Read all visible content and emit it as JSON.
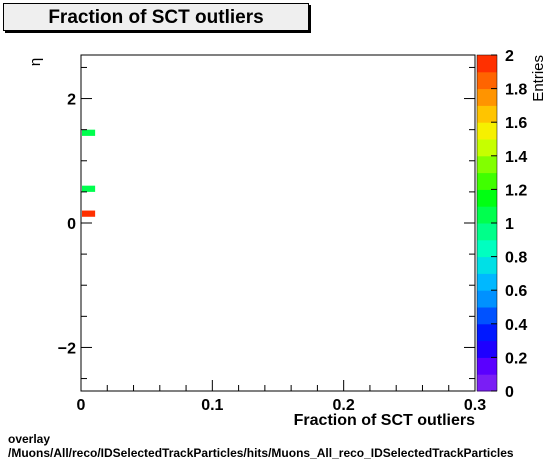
{
  "chart_data": {
    "type": "heatmap",
    "title": "Fraction of SCT outliers",
    "xlabel": "Fraction of SCT outliers",
    "ylabel": "η",
    "zlabel": "Entries",
    "xlim": [
      0,
      0.3
    ],
    "ylim": [
      -2.7,
      2.7
    ],
    "zlim": [
      0,
      2
    ],
    "x_ticks": [
      "0",
      "0.1",
      "0.2",
      "0.3"
    ],
    "y_ticks": [
      "−2",
      "0",
      "2"
    ],
    "z_ticks": [
      "0",
      "0.2",
      "0.4",
      "0.6",
      "0.8",
      "1",
      "1.2",
      "1.4",
      "1.6",
      "1.8",
      "2"
    ],
    "bins": [
      {
        "x": [
          0.0,
          0.01
        ],
        "y": [
          1.4,
          1.5
        ],
        "entries": 1
      },
      {
        "x": [
          0.0,
          0.01
        ],
        "y": [
          0.5,
          0.6
        ],
        "entries": 1
      },
      {
        "x": [
          0.0,
          0.01
        ],
        "y": [
          0.1,
          0.2
        ],
        "entries": 2
      }
    ],
    "grid": false
  },
  "footer": {
    "line1": "overlay",
    "line2": "/Muons/All/reco/IDSelectedTrackParticles/hits/Muons_All_reco_IDSelectedTrackParticles"
  }
}
